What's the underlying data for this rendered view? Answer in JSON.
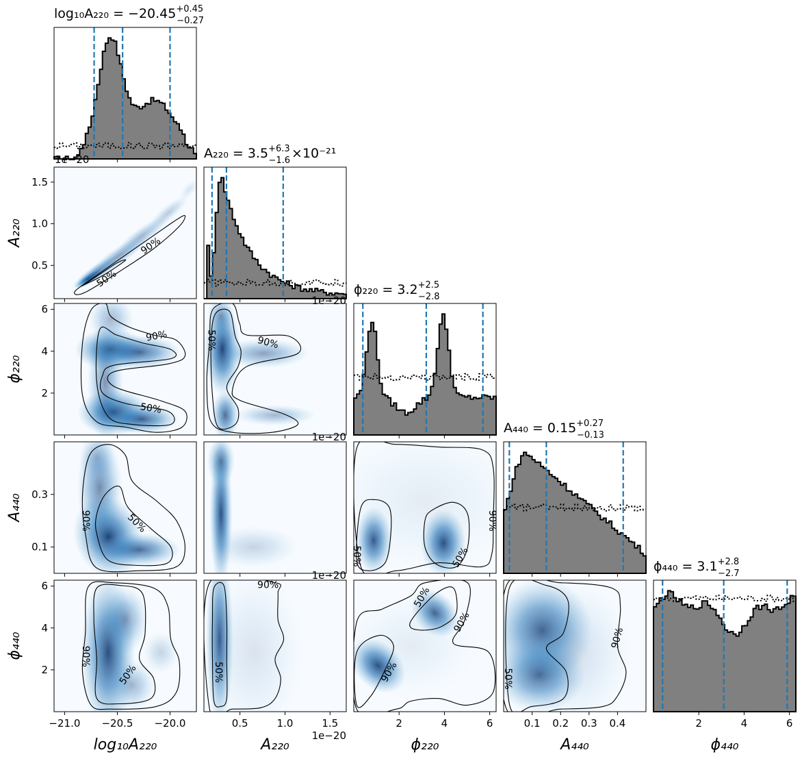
{
  "chart_data": {
    "type": "corner",
    "parameters": [
      {
        "key": "logA220",
        "label": "log₁₀A₂₂₀",
        "range": [
          -21.1,
          -19.75
        ],
        "ticks": [
          -21.0,
          -20.5,
          -20.0
        ],
        "tick_labels": [
          "−21.0",
          "−20.5",
          "−20.0"
        ],
        "offset": "",
        "title": {
          "main": "log₁₀A₂₂₀ = −20.45",
          "sup": "+0.45",
          "sub": "−0.27"
        },
        "quantiles": [
          -20.72,
          -20.45,
          -20.0
        ]
      },
      {
        "key": "A220",
        "label": "A₂₂₀",
        "range": [
          0.1,
          1.68
        ],
        "ticks": [
          0.5,
          1.0,
          1.5
        ],
        "tick_labels": [
          "0.5",
          "1.0",
          "1.5"
        ],
        "offset": "1e−20",
        "title": {
          "main": "A₂₂₀ = 3.5",
          "sup": "+6.3",
          "sub": "−1.6",
          "suffix": "×10⁻²¹"
        },
        "quantiles": [
          0.19,
          0.35,
          0.98
        ]
      },
      {
        "key": "phi220",
        "label": "ϕ₂₂₀",
        "range": [
          0.0,
          6.283
        ],
        "ticks": [
          2,
          4,
          6
        ],
        "tick_labels": [
          "2",
          "4",
          "6"
        ],
        "offset": "",
        "title": {
          "main": "ϕ₂₂₀ = 3.2",
          "sup": "+2.5",
          "sub": "−2.8"
        },
        "quantiles": [
          0.4,
          3.2,
          5.7
        ]
      },
      {
        "key": "A440",
        "label": "A₄₄₀",
        "range": [
          0.0,
          0.5
        ],
        "ticks": [
          0.1,
          0.2,
          0.3,
          0.4
        ],
        "tick_labels": [
          "0.1",
          "0.2",
          "0.3",
          "0.4"
        ],
        "offset": "",
        "title": {
          "main": "A₄₄₀ = 0.15",
          "sup": "+0.27",
          "sub": "−0.13"
        },
        "quantiles": [
          0.02,
          0.15,
          0.42
        ]
      },
      {
        "key": "phi440",
        "label": "ϕ₄₄₀",
        "range": [
          0.0,
          6.283
        ],
        "ticks": [
          2,
          4,
          6
        ],
        "tick_labels": [
          "2",
          "4",
          "6"
        ],
        "offset": "",
        "title": {
          "main": "ϕ₄₄₀ = 3.1",
          "sup": "+2.8",
          "sub": "−2.7"
        },
        "quantiles": [
          0.4,
          3.1,
          5.9
        ]
      }
    ],
    "row_ticks": {
      "A220": {
        "ticks": [
          0.5,
          1.0,
          1.5
        ],
        "labels": [
          "0.5",
          "1.0",
          "1.5"
        ]
      },
      "phi220": {
        "ticks": [
          2,
          4,
          6
        ],
        "labels": [
          "2",
          "4",
          "6"
        ]
      },
      "A440": {
        "ticks": [
          0.1,
          0.3
        ],
        "labels": [
          "0.1",
          "0.3"
        ]
      },
      "phi440": {
        "ticks": [
          2,
          4,
          6
        ],
        "labels": [
          "2",
          "4",
          "6"
        ]
      }
    },
    "hist_fill_color": "#808080",
    "quantile_line_color": "#1f77b4",
    "density_colormap": "Blues",
    "contour_levels": [
      "50%",
      "90%"
    ]
  }
}
